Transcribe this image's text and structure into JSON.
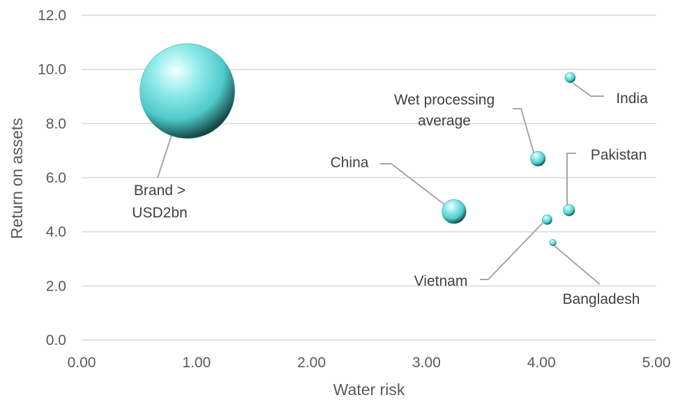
{
  "chart_data": {
    "type": "bubble",
    "title": "",
    "xlabel": "Water risk",
    "ylabel": "Return on assets",
    "xlim": [
      0,
      5
    ],
    "ylim": [
      0,
      12
    ],
    "x_ticks": [
      "0.00",
      "1.00",
      "2.00",
      "3.00",
      "4.00",
      "5.00"
    ],
    "y_ticks": [
      "0.0",
      "2.0",
      "4.0",
      "6.0",
      "8.0",
      "10.0",
      "12.0"
    ],
    "grid": "horizontal",
    "legend": "none",
    "bubble_color": "#4fd1d1",
    "points": [
      {
        "label": "Brand > USD2bn",
        "x": 0.92,
        "y": 9.2,
        "size": 100
      },
      {
        "label": "India",
        "x": 4.25,
        "y": 9.7,
        "size": 1.2
      },
      {
        "label": "Wet processing average",
        "x": 3.97,
        "y": 6.7,
        "size": 2.5
      },
      {
        "label": "Pakistan",
        "x": 4.24,
        "y": 4.8,
        "size": 1.5
      },
      {
        "label": "China",
        "x": 3.24,
        "y": 4.75,
        "size": 6.5
      },
      {
        "label": "Vietnam",
        "x": 4.05,
        "y": 4.45,
        "size": 1.1
      },
      {
        "label": "Bangladesh",
        "x": 4.1,
        "y": 3.6,
        "size": 0.5
      }
    ]
  }
}
